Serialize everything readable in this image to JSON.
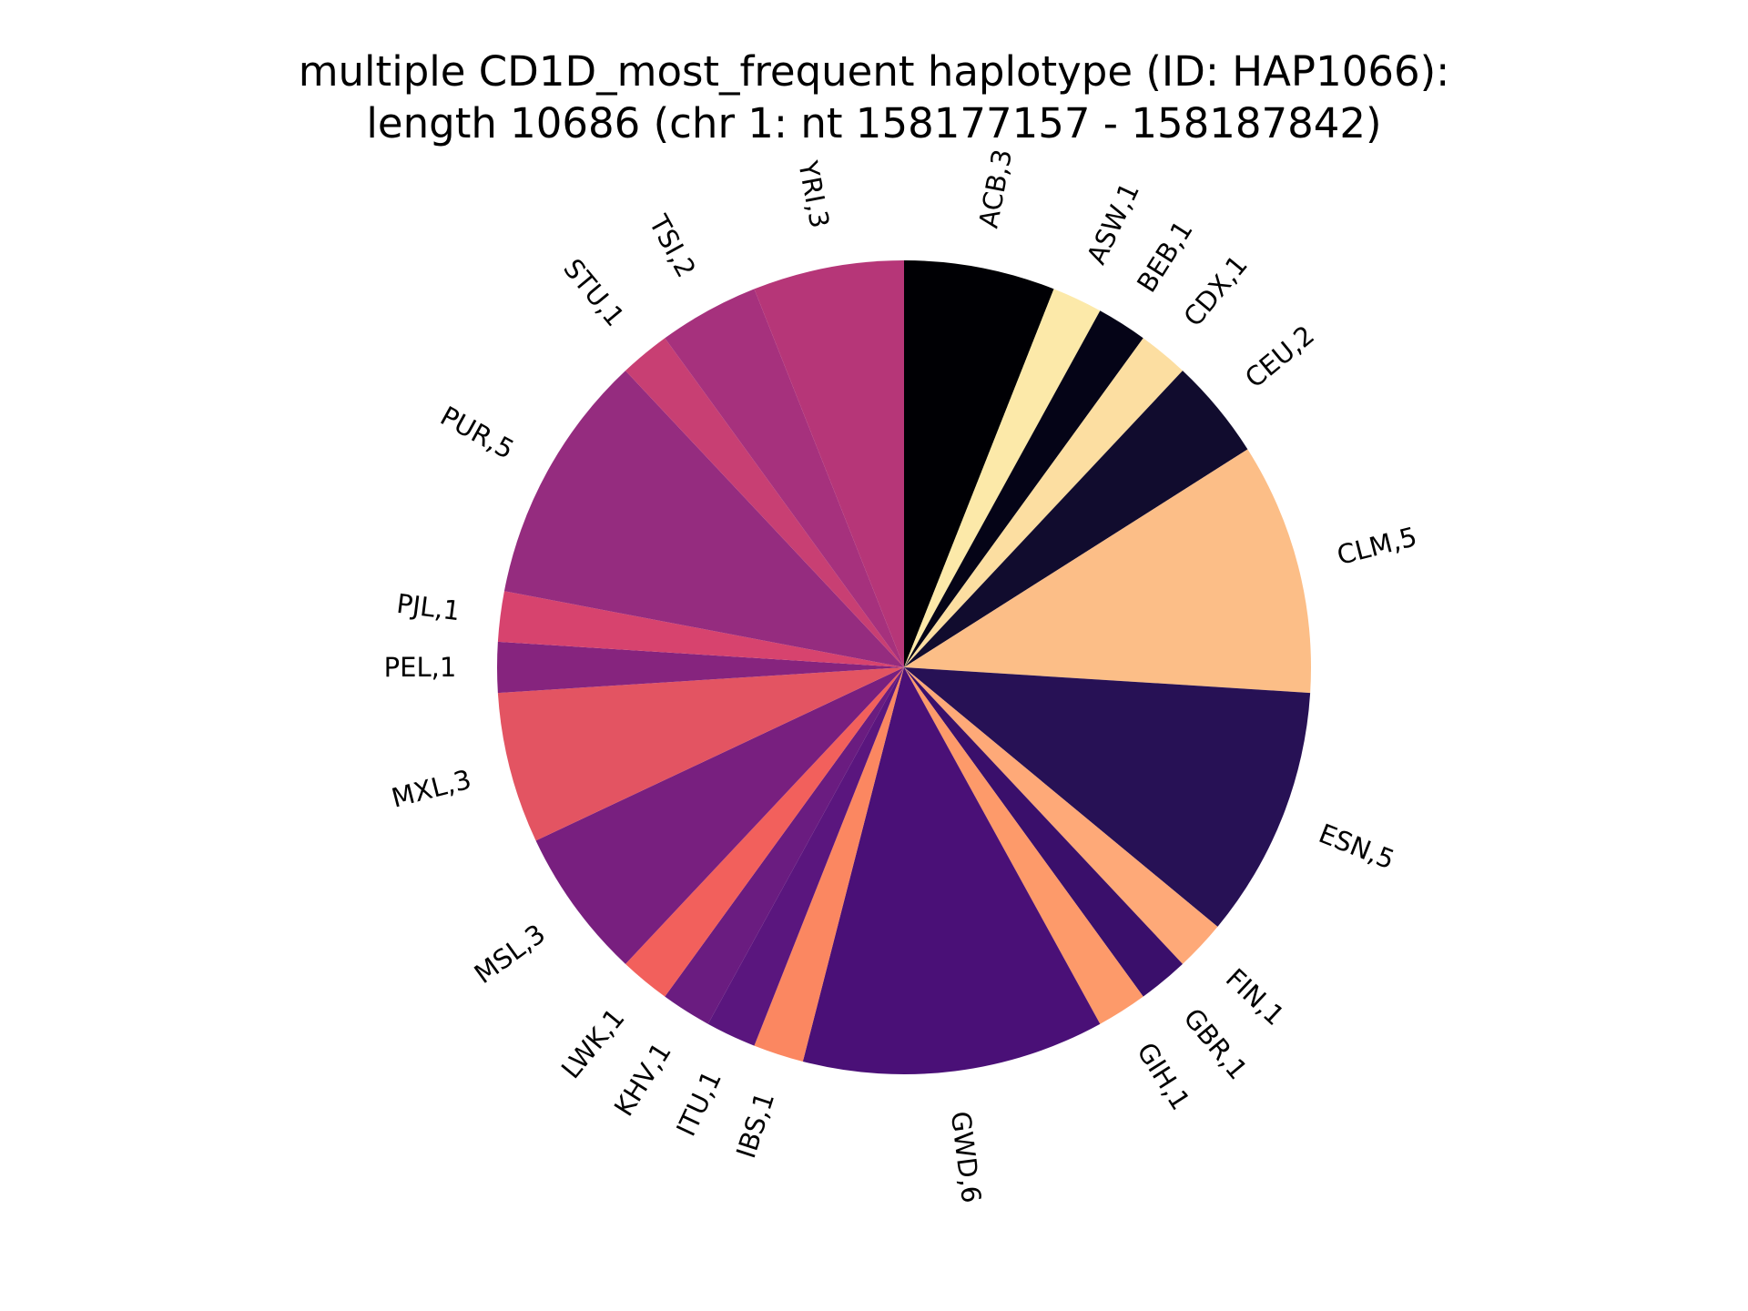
{
  "chart_data": {
    "type": "pie",
    "title_line1": "multiple CD1D_most_frequent haplotype (ID: HAP1066):",
    "title_line2": "length 10686 (chr 1: nt 158177157 - 158187842)",
    "start_angle_deg": 90,
    "direction": "clockwise",
    "slices": [
      {
        "name": "ACB",
        "value": 3,
        "label": "ACB,3",
        "color": "#000004"
      },
      {
        "name": "ASW",
        "value": 1,
        "label": "ASW,1",
        "color": "#fce9a9"
      },
      {
        "name": "BEB",
        "value": 1,
        "label": "BEB,1",
        "color": "#050417"
      },
      {
        "name": "CDX",
        "value": 1,
        "label": "CDX,1",
        "color": "#fcdea1"
      },
      {
        "name": "CEU",
        "value": 2,
        "label": "CEU,2",
        "color": "#110c2e"
      },
      {
        "name": "CLM",
        "value": 5,
        "label": "CLM,5",
        "color": "#fcbe87"
      },
      {
        "name": "ESN",
        "value": 5,
        "label": "ESN,5",
        "color": "#271155"
      },
      {
        "name": "FIN",
        "value": 1,
        "label": "FIN,1",
        "color": "#fea978"
      },
      {
        "name": "GBR",
        "value": 1,
        "label": "GBR,1",
        "color": "#3a0f6b"
      },
      {
        "name": "GIH",
        "value": 1,
        "label": "GIH,1",
        "color": "#fd9a6a"
      },
      {
        "name": "GWD",
        "value": 6,
        "label": "GWD,6",
        "color": "#4a1077"
      },
      {
        "name": "IBS",
        "value": 1,
        "label": "IBS,1",
        "color": "#fb8761"
      },
      {
        "name": "ITU",
        "value": 1,
        "label": "ITU,1",
        "color": "#5a167e"
      },
      {
        "name": "KHV",
        "value": 1,
        "label": "KHV,1",
        "color": "#6a1c80"
      },
      {
        "name": "LWK",
        "value": 1,
        "label": "LWK,1",
        "color": "#f2605c"
      },
      {
        "name": "MSL",
        "value": 3,
        "label": "MSL,3",
        "color": "#781f7f"
      },
      {
        "name": "MXL",
        "value": 3,
        "label": "MXL,3",
        "color": "#e35462"
      },
      {
        "name": "PEL",
        "value": 1,
        "label": "PEL,1",
        "color": "#86247e"
      },
      {
        "name": "PJL",
        "value": 1,
        "label": "PJL,1",
        "color": "#d7436e"
      },
      {
        "name": "PUR",
        "value": 5,
        "label": "PUR,5",
        "color": "#952c7f"
      },
      {
        "name": "STU",
        "value": 1,
        "label": "STU,1",
        "color": "#c83f73"
      },
      {
        "name": "TSI",
        "value": 2,
        "label": "TSI,2",
        "color": "#a6317d"
      },
      {
        "name": "YRI",
        "value": 3,
        "label": "YRI,3",
        "color": "#b63678"
      }
    ]
  }
}
